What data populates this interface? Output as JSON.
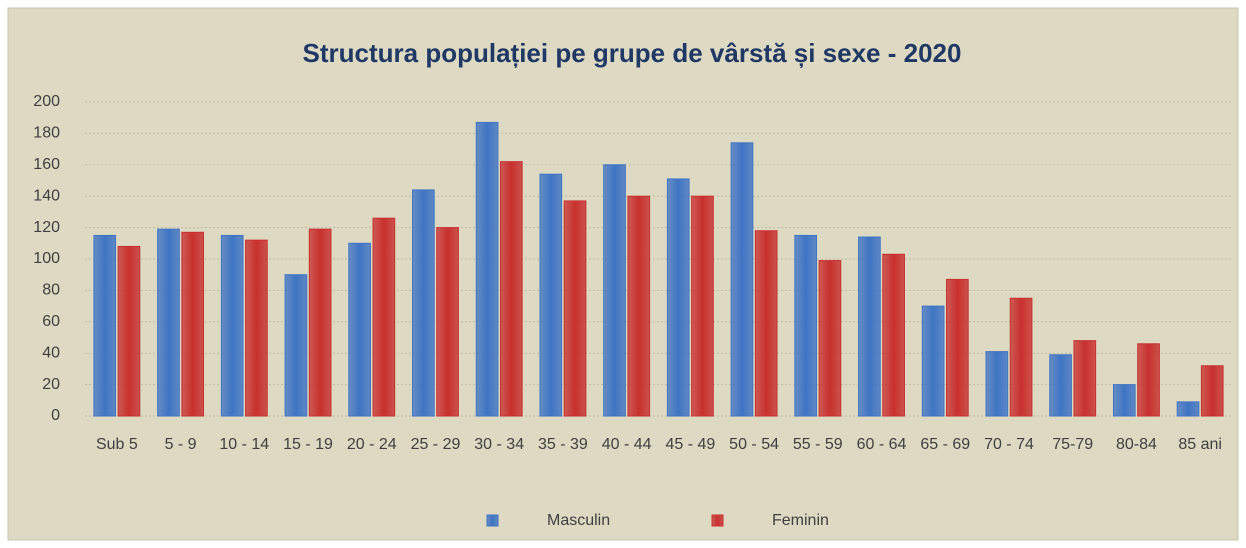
{
  "chart_data": {
    "type": "bar",
    "title": "Structura populației pe grupe de vârstă și sexe - 2020",
    "categories": [
      "Sub 5",
      "5 - 9",
      "10 - 14",
      "15 - 19",
      "20 - 24",
      "25 - 29",
      "30 - 34",
      "35 - 39",
      "40 - 44",
      "45 - 49",
      "50 - 54",
      "55 - 59",
      "60 - 64",
      "65 - 69",
      "70 - 74",
      "75-79",
      "80-84",
      "85 ani"
    ],
    "series": [
      {
        "name": "Masculin",
        "color": "#3f74c4",
        "values": [
          115,
          119,
          115,
          90,
          110,
          144,
          187,
          154,
          160,
          151,
          174,
          115,
          114,
          70,
          41,
          39,
          20,
          9
        ]
      },
      {
        "name": "Feminin",
        "color": "#c8302e",
        "values": [
          108,
          117,
          112,
          119,
          126,
          120,
          162,
          137,
          140,
          140,
          118,
          99,
          103,
          87,
          75,
          48,
          46,
          32
        ]
      }
    ],
    "ylim": [
      0,
      200
    ],
    "yticks": [
      0,
      20,
      40,
      60,
      80,
      100,
      120,
      140,
      160,
      180,
      200
    ],
    "grid": true,
    "legend": "bottom"
  }
}
